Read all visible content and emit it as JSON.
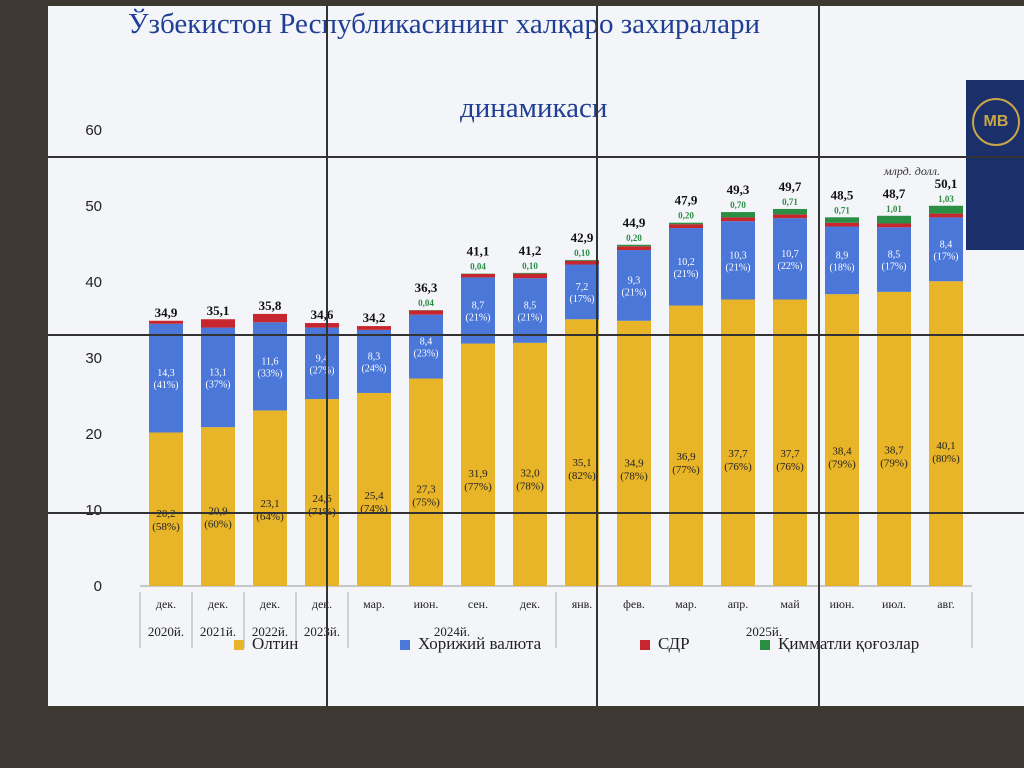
{
  "title": {
    "line1": "Ўзбекистон Республикасининг халқаро захиралари",
    "line2": "динамикаси"
  },
  "logo_text": "MB",
  "unit_label": "млрд. долл.",
  "colors": {
    "gold": "#e8b428",
    "currency": "#4a77d8",
    "sdr": "#c8262e",
    "securities": "#2a8f45",
    "title": "#1f3f95"
  },
  "legend": {
    "gold": "Олтин",
    "currency": "Хорижий валюта",
    "sdr": "СДР",
    "securities": "Қимматли қоғозлар"
  },
  "chart_data": {
    "type": "bar",
    "stacked": true,
    "ylim": [
      0,
      60
    ],
    "y_ticks": [
      "0",
      "10",
      "20",
      "30",
      "40",
      "50",
      "60"
    ],
    "categories": [
      "дек.",
      "дек.",
      "дек.",
      "дек.",
      "мар.",
      "июн.",
      "сен.",
      "дек.",
      "янв.",
      "фев.",
      "мар.",
      "апр.",
      "май",
      "июн.",
      "июл.",
      "авг."
    ],
    "year_groups": [
      {
        "label": "2020й.",
        "from": 0,
        "to": 0
      },
      {
        "label": "2021й.",
        "from": 1,
        "to": 1
      },
      {
        "label": "2022й.",
        "from": 2,
        "to": 2
      },
      {
        "label": "2023й.",
        "from": 3,
        "to": 3
      },
      {
        "label": "2024й.",
        "from": 4,
        "to": 7
      },
      {
        "label": "2025й.",
        "from": 8,
        "to": 15
      }
    ],
    "totals": [
      "34,9",
      "35,1",
      "35,8",
      "34,6",
      "34,2",
      "36,3",
      "41,1",
      "41,2",
      "42,9",
      "44,9",
      "47,9",
      "49,3",
      "49,7",
      "48,5",
      "48,7",
      "50,1"
    ],
    "series": [
      {
        "name": "Олтин",
        "values": [
          20.2,
          20.9,
          23.1,
          24.6,
          25.4,
          27.3,
          31.9,
          32.0,
          35.1,
          34.9,
          36.9,
          37.7,
          37.7,
          38.4,
          38.7,
          40.1
        ],
        "labels": [
          "20,2",
          "20,9",
          "23,1",
          "24,6",
          "25,4",
          "27,3",
          "31,9",
          "32,0",
          "35,1",
          "34,9",
          "36,9",
          "37,7",
          "37,7",
          "38,4",
          "38,7",
          "40,1"
        ],
        "shares": [
          "(58%)",
          "(60%)",
          "(64%)",
          "(71%)",
          "(74%)",
          "(75%)",
          "(77%)",
          "(78%)",
          "(82%)",
          "(78%)",
          "(77%)",
          "(76%)",
          "(76%)",
          "(79%)",
          "(79%)",
          "(80%)"
        ]
      },
      {
        "name": "Хорижий валюта",
        "values": [
          14.3,
          13.1,
          11.6,
          9.4,
          8.3,
          8.4,
          8.7,
          8.5,
          7.2,
          9.3,
          10.2,
          10.3,
          10.7,
          8.9,
          8.5,
          8.4
        ],
        "labels": [
          "14,3",
          "13,1",
          "11,6",
          "9,4",
          "8,3",
          "8,4",
          "8,7",
          "8,5",
          "7,2",
          "9,3",
          "10,2",
          "10,3",
          "10,7",
          "8,9",
          "8,5",
          "8,4"
        ],
        "shares": [
          "(41%)",
          "(37%)",
          "(33%)",
          "(27%)",
          "(24%)",
          "(23%)",
          "(21%)",
          "(21%)",
          "(17%)",
          "(21%)",
          "(21%)",
          "(21%)",
          "(22%)",
          "(18%)",
          "(17%)",
          "(17%)"
        ]
      },
      {
        "name": "СДР",
        "values": [
          0.4,
          1.1,
          1.1,
          0.6,
          0.5,
          0.56,
          0.46,
          0.6,
          0.5,
          0.5,
          0.5,
          0.5,
          0.5,
          0.5,
          0.5,
          0.5
        ]
      },
      {
        "name": "Қимматли қоғозлар",
        "values": [
          0,
          0,
          0,
          0,
          0,
          0.04,
          0.04,
          0.1,
          0.1,
          0.2,
          0.2,
          0.7,
          0.71,
          0.71,
          1.01,
          1.03
        ],
        "labels": [
          "",
          "",
          "",
          "",
          "",
          "0,04",
          "0,04",
          "0,10",
          "0,10",
          "0,20",
          "0,20",
          "0,70",
          "0,71",
          "0,71",
          "1,01",
          "1,03"
        ]
      }
    ]
  }
}
